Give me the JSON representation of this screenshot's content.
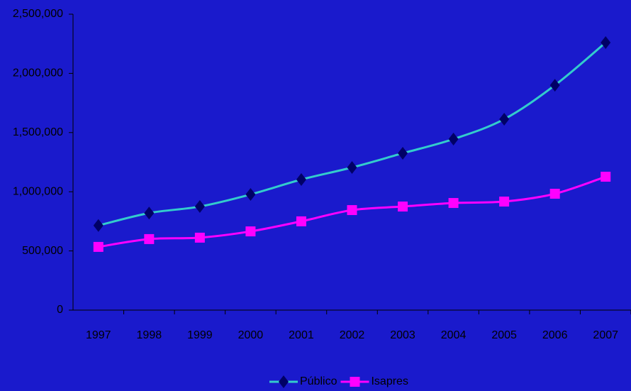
{
  "chart_data": {
    "type": "line",
    "categories": [
      "1997",
      "1998",
      "1999",
      "2000",
      "2001",
      "2002",
      "2003",
      "2004",
      "2005",
      "2006",
      "2007"
    ],
    "series": [
      {
        "name": "Público",
        "color": "#33cccc",
        "marker_color": "#000066",
        "marker": "diamond",
        "values": [
          715000,
          820000,
          875000,
          977000,
          1103000,
          1205000,
          1325000,
          1445000,
          1613000,
          1900000,
          2260000
        ]
      },
      {
        "name": "Isapres",
        "color": "#ff00ff",
        "marker_color": "#ff00ff",
        "marker": "square",
        "values": [
          534000,
          600000,
          612000,
          665000,
          750000,
          845000,
          875000,
          905000,
          917000,
          983000,
          1127000
        ]
      }
    ],
    "ylim": [
      0,
      2500000
    ],
    "yticks": [
      0,
      {
        "value": 500000,
        "label": "500,000"
      },
      {
        "value": 1000000,
        "label": "1,000,000"
      },
      {
        "value": 1500000,
        "label": "1,500,000"
      },
      {
        "value": 2000000,
        "label": "2,000,000"
      },
      {
        "value": 2500000,
        "label": "2,500,000"
      }
    ],
    "grid": false,
    "legend": "bottom",
    "background": "#1a1acc"
  }
}
